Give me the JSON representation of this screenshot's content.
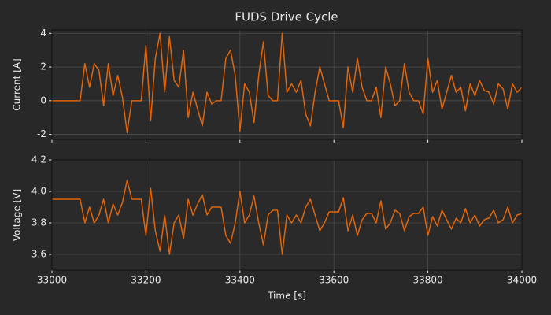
{
  "chart_data": [
    {
      "type": "line",
      "title": "FUDS Drive Cycle",
      "ylabel": "Current [A]",
      "x": [
        33000,
        33010,
        33020,
        33030,
        33040,
        33050,
        33060,
        33070,
        33080,
        33090,
        33100,
        33110,
        33120,
        33130,
        33140,
        33150,
        33160,
        33170,
        33180,
        33190,
        33200,
        33210,
        33220,
        33230,
        33240,
        33250,
        33260,
        33270,
        33280,
        33290,
        33300,
        33310,
        33320,
        33330,
        33340,
        33350,
        33360,
        33370,
        33380,
        33390,
        33400,
        33410,
        33420,
        33430,
        33440,
        33450,
        33460,
        33470,
        33480,
        33490,
        33500,
        33510,
        33520,
        33530,
        33540,
        33550,
        33560,
        33570,
        33580,
        33590,
        33600,
        33610,
        33620,
        33630,
        33640,
        33650,
        33660,
        33670,
        33680,
        33690,
        33700,
        33710,
        33720,
        33730,
        33740,
        33750,
        33760,
        33770,
        33780,
        33790,
        33800,
        33810,
        33820,
        33830,
        33840,
        33850,
        33860,
        33870,
        33880,
        33890,
        33900,
        33910,
        33920,
        33930,
        33940,
        33950,
        33960,
        33970,
        33980,
        33990,
        34000
      ],
      "series": [
        {
          "color": "#e0650b",
          "values": [
            0,
            0,
            0,
            0,
            0,
            0,
            0,
            2.2,
            0.8,
            2.2,
            1.8,
            -0.3,
            2.2,
            0.3,
            1.5,
            0.2,
            -1.9,
            0,
            0,
            0,
            3.3,
            -1.2,
            2.5,
            4,
            0.5,
            3.8,
            1.2,
            0.8,
            3,
            -1,
            0.5,
            -0.5,
            -1.5,
            0.5,
            -0.2,
            0,
            0,
            2.5,
            3,
            1.5,
            -1.8,
            1,
            0.5,
            -1.3,
            1.5,
            3.5,
            0.3,
            0,
            0,
            4,
            0.5,
            1,
            0.5,
            1.2,
            -0.8,
            -1.5,
            0.5,
            2,
            1,
            0,
            0,
            0,
            -1.6,
            2,
            0.5,
            2.5,
            0.8,
            0,
            0,
            0.8,
            -1,
            2,
            1,
            -0.3,
            0,
            2.2,
            0.5,
            0,
            0,
            -0.8,
            2.5,
            0.5,
            1.2,
            -0.5,
            0.5,
            1.5,
            0.5,
            0.8,
            -0.6,
            1,
            0.3,
            1.2,
            0.6,
            0.5,
            -0.2,
            1,
            0.7,
            -0.5,
            1,
            0.5,
            0.8
          ]
        }
      ],
      "xlim": [
        33000,
        34000
      ],
      "xticks": [
        33000,
        33200,
        33400,
        33600,
        33800,
        34000
      ],
      "ylim": [
        -2.3,
        4.2
      ],
      "yticks": [
        -2,
        0,
        2,
        4
      ],
      "grid": true
    },
    {
      "type": "line",
      "ylabel": "Voltage [V]",
      "xlabel": "Time [s]",
      "x": [
        33000,
        33010,
        33020,
        33030,
        33040,
        33050,
        33060,
        33070,
        33080,
        33090,
        33100,
        33110,
        33120,
        33130,
        33140,
        33150,
        33160,
        33170,
        33180,
        33190,
        33200,
        33210,
        33220,
        33230,
        33240,
        33250,
        33260,
        33270,
        33280,
        33290,
        33300,
        33310,
        33320,
        33330,
        33340,
        33350,
        33360,
        33370,
        33380,
        33390,
        33400,
        33410,
        33420,
        33430,
        33440,
        33450,
        33460,
        33470,
        33480,
        33490,
        33500,
        33510,
        33520,
        33530,
        33540,
        33550,
        33560,
        33570,
        33580,
        33590,
        33600,
        33610,
        33620,
        33630,
        33640,
        33650,
        33660,
        33670,
        33680,
        33690,
        33700,
        33710,
        33720,
        33730,
        33740,
        33750,
        33760,
        33770,
        33780,
        33790,
        33800,
        33810,
        33820,
        33830,
        33840,
        33850,
        33860,
        33870,
        33880,
        33890,
        33900,
        33910,
        33920,
        33930,
        33940,
        33950,
        33960,
        33970,
        33980,
        33990,
        34000
      ],
      "series": [
        {
          "color": "#e0650b",
          "values": [
            3.95,
            3.95,
            3.95,
            3.95,
            3.95,
            3.95,
            3.95,
            3.8,
            3.9,
            3.8,
            3.85,
            3.95,
            3.8,
            3.92,
            3.85,
            3.93,
            4.07,
            3.95,
            3.95,
            3.95,
            3.72,
            4.02,
            3.75,
            3.62,
            3.85,
            3.6,
            3.8,
            3.85,
            3.7,
            3.95,
            3.85,
            3.92,
            3.98,
            3.85,
            3.9,
            3.9,
            3.9,
            3.72,
            3.67,
            3.8,
            4.0,
            3.8,
            3.85,
            3.97,
            3.8,
            3.66,
            3.85,
            3.88,
            3.88,
            3.6,
            3.85,
            3.8,
            3.85,
            3.8,
            3.9,
            3.95,
            3.85,
            3.75,
            3.8,
            3.87,
            3.87,
            3.87,
            3.96,
            3.75,
            3.85,
            3.72,
            3.82,
            3.86,
            3.86,
            3.8,
            3.94,
            3.76,
            3.8,
            3.88,
            3.86,
            3.75,
            3.84,
            3.86,
            3.86,
            3.9,
            3.72,
            3.84,
            3.78,
            3.88,
            3.82,
            3.76,
            3.83,
            3.8,
            3.89,
            3.8,
            3.85,
            3.78,
            3.82,
            3.83,
            3.88,
            3.8,
            3.82,
            3.9,
            3.8,
            3.85,
            3.86
          ]
        }
      ],
      "xlim": [
        33000,
        34000
      ],
      "xticks": [
        33000,
        33200,
        33400,
        33600,
        33800,
        34000
      ],
      "ylim": [
        3.5,
        4.2
      ],
      "yticks": [
        3.6,
        3.8,
        {
          "value": 4,
          "label": "4.0"
        },
        4.2
      ],
      "grid": true
    }
  ]
}
